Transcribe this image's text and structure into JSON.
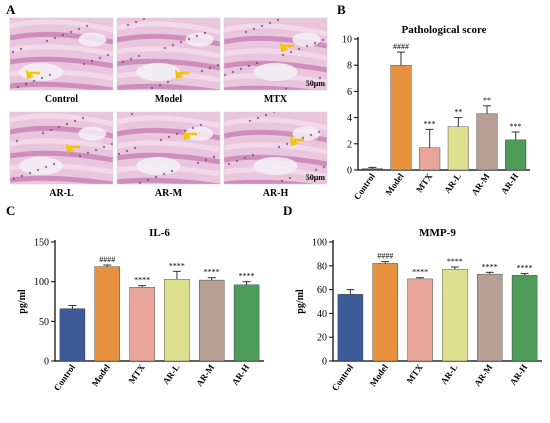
{
  "panels": {
    "a": "A",
    "b": "B",
    "c": "C",
    "d": "D"
  },
  "histology": {
    "images": [
      {
        "label": "Control",
        "scale": ""
      },
      {
        "label": "Model",
        "scale": ""
      },
      {
        "label": "MTX",
        "scale": "50μm"
      },
      {
        "label": "AR-L",
        "scale": ""
      },
      {
        "label": "AR-M",
        "scale": ""
      },
      {
        "label": "AR-H",
        "scale": "50μm"
      }
    ],
    "stain_color": "#d9a6c9",
    "arrow_color": "#f2c500"
  },
  "chart_data": [
    {
      "id": "B",
      "type": "bar",
      "title": "Pathological score",
      "ylabel": "",
      "ylim": [
        0,
        10
      ],
      "yticks": [
        0,
        2,
        4,
        6,
        8,
        10
      ],
      "categories": [
        "Control",
        "Model",
        "MTX",
        "AR-L",
        "AR-M",
        "AR-H"
      ],
      "values": [
        0.1,
        8.0,
        1.7,
        3.3,
        4.3,
        2.3
      ],
      "errors": [
        0.1,
        1.0,
        1.4,
        0.7,
        0.6,
        0.6
      ],
      "significance": [
        "",
        "####",
        "***",
        "**",
        "**",
        "***"
      ],
      "colors": [
        "#3d5a98",
        "#e8923f",
        "#e8a69a",
        "#dfe08f",
        "#b79f95",
        "#4f9c5a"
      ]
    },
    {
      "id": "C",
      "type": "bar",
      "title": "IL-6",
      "ylabel": "pg/ml",
      "ylim": [
        0,
        150
      ],
      "yticks": [
        0,
        50,
        100,
        150
      ],
      "categories": [
        "Control",
        "Model",
        "MTX",
        "AR-L",
        "AR-M",
        "AR-H"
      ],
      "values": [
        66,
        119,
        93,
        103,
        102,
        96
      ],
      "errors": [
        4,
        2,
        2,
        10,
        3,
        4
      ],
      "significance": [
        "",
        "####",
        "****",
        "****",
        "****",
        "****"
      ],
      "colors": [
        "#3d5a98",
        "#e8923f",
        "#e8a69a",
        "#dfe08f",
        "#b79f95",
        "#4f9c5a"
      ]
    },
    {
      "id": "D",
      "type": "bar",
      "title": "MMP-9",
      "ylabel": "pg/ml",
      "ylim": [
        0,
        100
      ],
      "yticks": [
        0,
        20,
        40,
        60,
        80,
        100
      ],
      "categories": [
        "Control",
        "Model",
        "MTX",
        "AR-L",
        "AR-M",
        "AR-H"
      ],
      "values": [
        56,
        82,
        69,
        77,
        73,
        72
      ],
      "errors": [
        4,
        1.5,
        1,
        2,
        1.5,
        1.5
      ],
      "significance": [
        "",
        "####",
        "****",
        "****",
        "****",
        "****"
      ],
      "colors": [
        "#3d5a98",
        "#e8923f",
        "#e8a69a",
        "#dfe08f",
        "#b79f95",
        "#4f9c5a"
      ]
    }
  ]
}
